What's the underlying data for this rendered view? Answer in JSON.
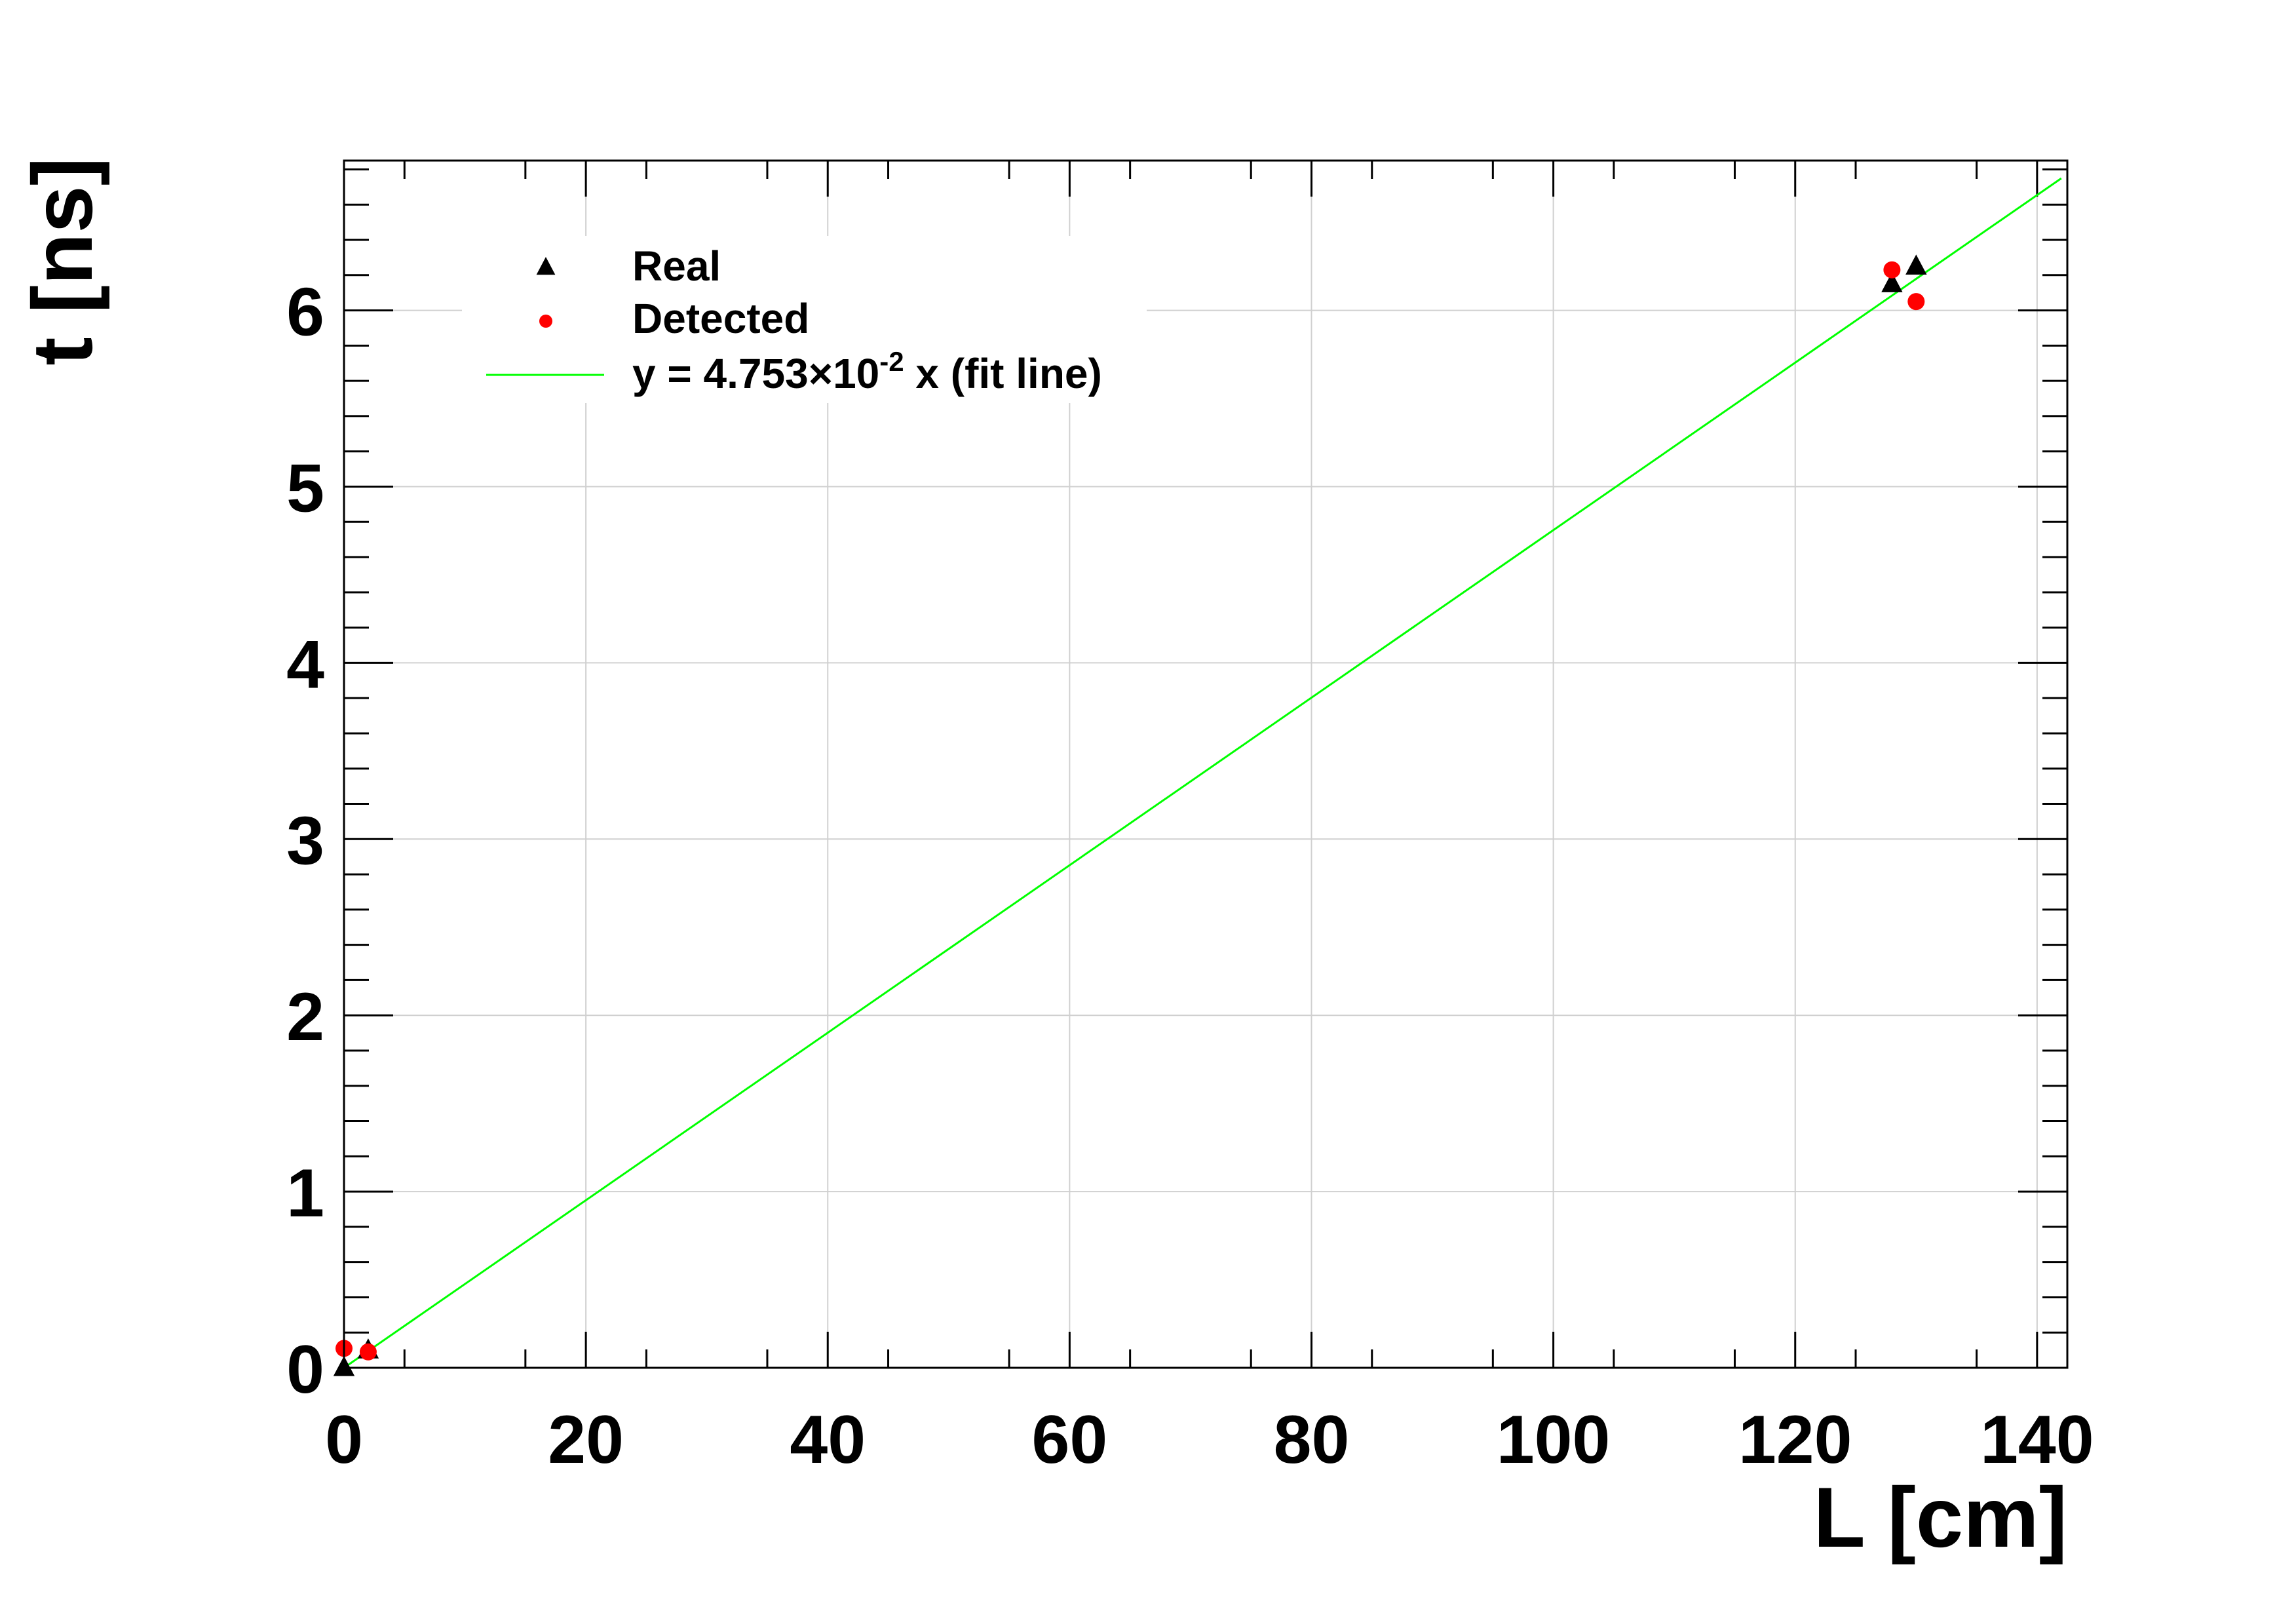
{
  "chart_data": {
    "type": "scatter",
    "xlabel": "L [cm]",
    "ylabel": "t [ns]",
    "xlim": [
      0,
      142.5
    ],
    "ylim": [
      0,
      6.85
    ],
    "xticks": [
      0,
      20,
      40,
      60,
      80,
      100,
      120,
      140
    ],
    "yticks": [
      0,
      1,
      2,
      3,
      4,
      5,
      6
    ],
    "xtick_labels": [
      "0",
      "20",
      "40",
      "60",
      "80",
      "100",
      "120",
      "140"
    ],
    "ytick_labels": [
      "0",
      "1",
      "2",
      "3",
      "4",
      "5",
      "6"
    ],
    "grid": true,
    "legend_position": "top-left",
    "series": [
      {
        "name": "Real",
        "marker": "triangle",
        "color": "#000000",
        "points": [
          {
            "x": 0,
            "y": 0.0
          },
          {
            "x": 2,
            "y": 0.1
          },
          {
            "x": 128,
            "y": 6.15
          },
          {
            "x": 130,
            "y": 6.25
          }
        ]
      },
      {
        "name": "Detected",
        "marker": "circle",
        "color": "#ff0000",
        "points": [
          {
            "x": 0,
            "y": 0.11
          },
          {
            "x": 2,
            "y": 0.09
          },
          {
            "x": 128,
            "y": 6.23
          },
          {
            "x": 130,
            "y": 6.05
          }
        ]
      }
    ],
    "fit_line": {
      "legend_text_main": "y = 4.753",
      "legend_text_times": "×10",
      "legend_text_exp": "-2",
      "legend_text_tail": " x (fit line)",
      "slope": 0.04753,
      "intercept": 0,
      "x_range": [
        0,
        142
      ],
      "color": "#00ff00"
    }
  }
}
